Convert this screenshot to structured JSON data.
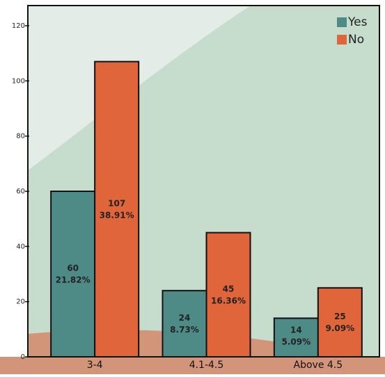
{
  "chart_data": {
    "type": "bar",
    "categories": [
      "3-4",
      "4.1-4.5",
      "Above 4.5"
    ],
    "series": [
      {
        "name": "Yes",
        "color": "#4e8a86",
        "values": [
          60,
          24,
          14
        ],
        "percent_labels": [
          "21.82%",
          "8.73%",
          "5.09%"
        ]
      },
      {
        "name": "No",
        "color": "#e0653a",
        "values": [
          107,
          45,
          25
        ],
        "percent_labels": [
          "38.91%",
          "16.36%",
          "9.09%"
        ]
      }
    ],
    "ylim": [
      0,
      120
    ],
    "yticks": [
      0,
      20,
      40,
      60,
      80,
      100,
      120
    ],
    "legend": "upper right"
  }
}
